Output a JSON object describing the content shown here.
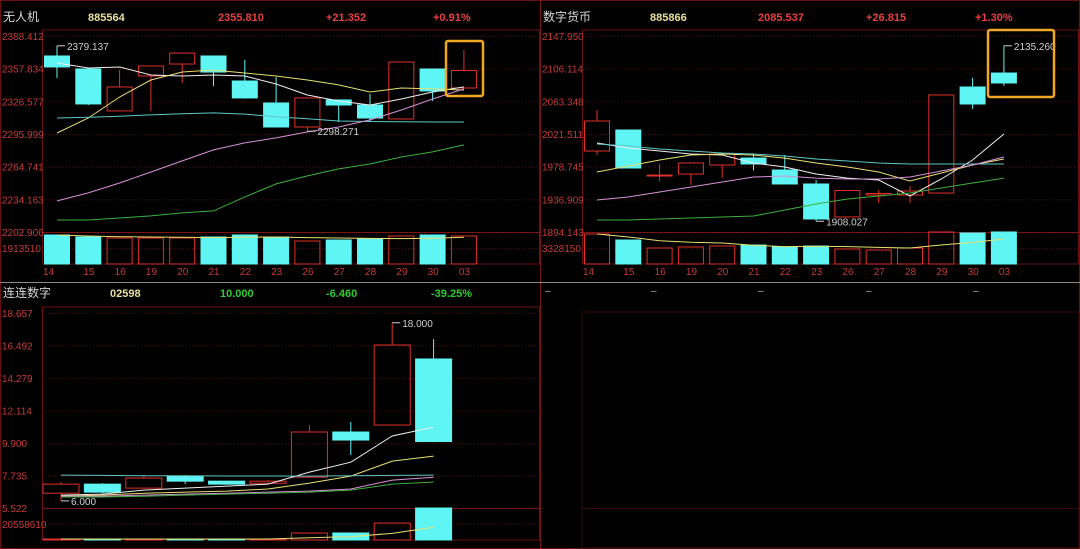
{
  "colors": {
    "up": "#e0302a",
    "down": "#5ff5f5",
    "header_code": "#e8e09a",
    "rise": "#e84040",
    "fall": "#2ecc2e",
    "grid": "#5a0c0c",
    "highlight": "#f0a820",
    "ma": [
      "#f0f0f0",
      "#e8e070",
      "#5fc8c8",
      "#d890d8",
      "#3cb03c"
    ]
  },
  "panels": [
    {
      "header": {
        "name": "无人机",
        "code": "885564",
        "price": "2355.810",
        "change": "+21.352",
        "pct": "+0.91%",
        "direction": "rise"
      },
      "chart_data": {
        "type": "candlestick",
        "ylim": [
          2202.906,
          2388.412
        ],
        "yticks": [
          "2388.412",
          "2357.834",
          "2326.577",
          "2295.999",
          "2264.741",
          "2234.163",
          "2202.906"
        ],
        "volume_tick": "1913510",
        "categories": [
          "14",
          "15",
          "16",
          "19",
          "20",
          "21",
          "22",
          "23",
          "26",
          "27",
          "28",
          "29",
          "30",
          "03"
        ],
        "ohlc": [
          [
            2369.5,
            2379.137,
            2348.7,
            2359.1
          ],
          [
            2357.2,
            2358.0,
            2323.0,
            2324.1
          ],
          [
            2317.5,
            2356.2,
            2317.5,
            2340.2
          ],
          [
            2350.6,
            2360.0,
            2317.5,
            2360.0
          ],
          [
            2361.9,
            2372.3,
            2344.0,
            2372.3
          ],
          [
            2369.5,
            2369.5,
            2341.1,
            2354.3
          ],
          [
            2345.8,
            2365.7,
            2329.0,
            2329.8
          ],
          [
            2325.0,
            2349.6,
            2302.3,
            2302.3
          ],
          [
            2302.3,
            2329.8,
            2298.271,
            2329.8
          ],
          [
            2327.9,
            2327.9,
            2307.0,
            2323.1
          ],
          [
            2323.1,
            2333.5,
            2307.0,
            2310.8
          ],
          [
            2309.9,
            2363.8,
            2309.9,
            2363.8
          ],
          [
            2357.2,
            2357.2,
            2327.0,
            2336.4
          ],
          [
            2339.2,
            2375.2,
            2339.2,
            2355.81
          ]
        ],
        "volume": [
          3470000,
          3230000,
          3110000,
          3110000,
          3110000,
          3230000,
          3470000,
          3230000,
          2750000,
          2870000,
          2990000,
          3350000,
          3470000,
          3350000
        ],
        "ma": [
          [
            2362.9,
            2358.1,
            2359.1,
            2351.5,
            2350.6,
            2351.5,
            2350.6,
            2343.0,
            2332.6,
            2326.9,
            2323.1,
            2328.8,
            2335.4,
            2340.2
          ],
          [
            2296.6,
            2310.8,
            2330.7,
            2346.8,
            2354.3,
            2356.2,
            2353.4,
            2350.6,
            2346.8,
            2342.1,
            2335.4,
            2339.2,
            2338.3,
            2337.3
          ],
          [
            2310.8,
            2311.5,
            2312.5,
            2313.7,
            2314.8,
            2315.6,
            2314.5,
            2311.8,
            2310.0,
            2308.0,
            2307.5,
            2307.2,
            2307.0,
            2307.0
          ],
          [
            2232.3,
            2239.9,
            2249.3,
            2259.7,
            2270.2,
            2280.6,
            2287.2,
            2292.0,
            2297.6,
            2302.3,
            2309.0,
            2318.4,
            2328.8,
            2338.3
          ],
          [
            2214.3,
            2214.3,
            2216.2,
            2218.1,
            2221.0,
            2222.9,
            2236.1,
            2248.4,
            2256.0,
            2262.6,
            2267.3,
            2273.9,
            2278.7,
            2285.3
          ]
        ],
        "annotations": {
          "high": "2379.137",
          "low": "2298.271"
        },
        "highlight_last": true
      }
    },
    {
      "header": {
        "name": "数字货币",
        "code": "885866",
        "price": "2085.537",
        "change": "+26.815",
        "pct": "+1.30%",
        "direction": "rise"
      },
      "chart_data": {
        "type": "candlestick",
        "ylim": [
          1894.143,
          2147.95
        ],
        "yticks": [
          "2147.950",
          "2106.114",
          "2063.348",
          "2021.511",
          "1978.745",
          "1936.909",
          "1894.143"
        ],
        "volume_tick": "3328150",
        "categories": [
          "14",
          "15",
          "16",
          "19",
          "20",
          "21",
          "22",
          "23",
          "26",
          "27",
          "28",
          "29",
          "30",
          "03"
        ],
        "ohlc": [
          [
            1999.0,
            2052.0,
            1993.8,
            2037.9
          ],
          [
            2026.2,
            2026.2,
            1977.0,
            1977.0
          ],
          [
            1967.9,
            1982.0,
            1960.0,
            1967.9
          ],
          [
            1969.2,
            1983.5,
            1955.0,
            1983.5
          ],
          [
            1980.9,
            1995.1,
            1964.0,
            1995.1
          ],
          [
            1989.9,
            1993.8,
            1974.0,
            1982.2
          ],
          [
            1974.4,
            1993.8,
            1956.3,
            1956.3
          ],
          [
            1956.3,
            1961.5,
            1908.027,
            1911.0
          ],
          [
            1913.6,
            1947.9,
            1913.6,
            1947.9
          ],
          [
            1942.0,
            1948.5,
            1931.7,
            1944.0
          ],
          [
            1942.0,
            1953.7,
            1931.7,
            1947.2
          ],
          [
            1944.6,
            2071.6,
            1944.6,
            2071.6
          ],
          [
            2081.9,
            2093.6,
            2053.4,
            2059.9
          ],
          [
            2100.0,
            2135.26,
            2083.2,
            2087.1
          ]
        ],
        "volume": [
          6240000,
          4990000,
          3330000,
          3540000,
          3740000,
          3950000,
          3540000,
          3740000,
          3120000,
          2910000,
          3330000,
          6660000,
          6450000,
          6660000
        ],
        "ma": [
          [
            2009.4,
            2002.9,
            1999.0,
            1995.1,
            1993.8,
            1983.5,
            1978.3,
            1969.2,
            1964.0,
            1961.5,
            1940.7,
            1962.8,
            1987.4,
            2021.0
          ],
          [
            1971.8,
            1979.6,
            1987.4,
            1993.8,
            1995.1,
            1993.8,
            1989.9,
            1983.5,
            1978.3,
            1971.8,
            1960.2,
            1970.5,
            1980.9,
            1988.7
          ],
          [
            2008.1,
            2005.5,
            2001.6,
            1999.0,
            1996.4,
            1995.1,
            1992.5,
            1988.7,
            1986.1,
            1983.5,
            1982.2,
            1982.2,
            1982.2,
            1982.2
          ],
          [
            1935.6,
            1939.5,
            1945.9,
            1952.4,
            1958.9,
            1965.4,
            1966.7,
            1964.0,
            1962.8,
            1962.8,
            1965.4,
            1973.1,
            1980.9,
            1991.2
          ],
          [
            1909.7,
            1909.7,
            1911.0,
            1912.3,
            1913.6,
            1914.8,
            1922.6,
            1930.4,
            1936.9,
            1940.7,
            1944.6,
            1951.1,
            1957.6,
            1964.0
          ]
        ],
        "annotations": {
          "high": "2135.260",
          "low": "1908.027"
        },
        "highlight_last": true
      }
    },
    {
      "header": {
        "name": "连连数字",
        "code": "02598",
        "price": "10.000",
        "change": "-6.460",
        "pct": "-39.25%",
        "direction": "fall"
      },
      "chart_data": {
        "type": "candlestick",
        "ylim": [
          5.522,
          18.657
        ],
        "yticks": [
          "18.657",
          "16.492",
          "14.279",
          "12.114",
          "9.900",
          "7.735",
          "5.522"
        ],
        "volume_tick": "20558610",
        "categories": [],
        "ohlc": [
          [
            6.52,
            7.27,
            6.0,
            7.13
          ],
          [
            7.13,
            7.2,
            6.5,
            6.59
          ],
          [
            6.86,
            7.74,
            6.86,
            7.54
          ],
          [
            7.67,
            7.74,
            7.13,
            7.33
          ],
          [
            7.33,
            7.33,
            7.1,
            7.13
          ],
          [
            7.19,
            7.4,
            7.13,
            7.33
          ],
          [
            7.6,
            11.11,
            7.6,
            10.64
          ],
          [
            10.64,
            11.31,
            9.09,
            10.1
          ],
          [
            11.11,
            18.0,
            11.11,
            16.5
          ],
          [
            15.56,
            16.9,
            9.96,
            10.0
          ]
        ],
        "volume": [
          1280000,
          1280000,
          1280000,
          1280000,
          1280000,
          1280000,
          9000000,
          9000000,
          21800000,
          41100000
        ],
        "ma": [
          [
            6.39,
            6.46,
            6.73,
            6.86,
            7.0,
            7.13,
            7.94,
            8.61,
            10.37,
            10.97
          ],
          [
            6.32,
            6.39,
            6.52,
            6.59,
            6.66,
            6.8,
            7.2,
            7.67,
            8.68,
            9.02
          ],
          [
            7.74,
            7.72,
            7.7,
            7.7,
            7.68,
            7.68,
            7.67,
            7.7,
            7.72,
            7.74
          ],
          [
            6.32,
            6.32,
            6.39,
            6.46,
            6.52,
            6.59,
            6.66,
            6.8,
            7.4,
            7.6
          ],
          [
            6.26,
            6.26,
            6.32,
            6.39,
            6.46,
            6.52,
            6.59,
            6.73,
            7.13,
            7.27
          ]
        ],
        "annotations": {
          "high": "18.000",
          "low": "6.000"
        },
        "highlight_last": false
      }
    }
  ],
  "empty_panel": {
    "placeholders": [
      "–",
      "–",
      "–",
      "–",
      "–"
    ]
  }
}
